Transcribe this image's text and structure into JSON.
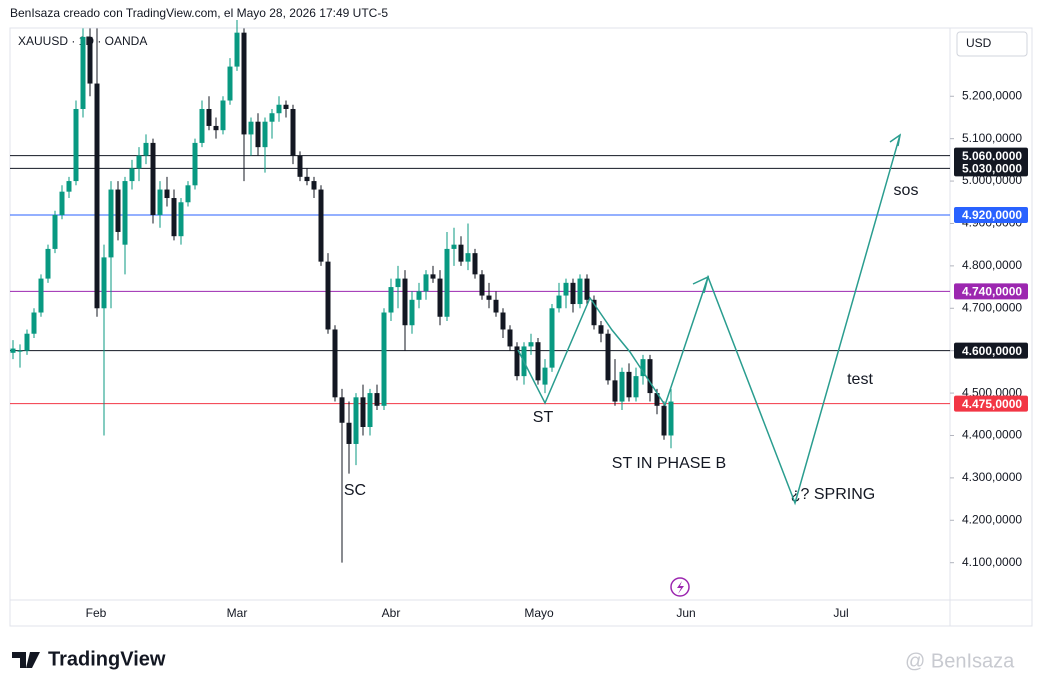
{
  "header": {
    "credit": "BenIsaza creado con TradingView.com, el Mayo 28, 2026 17:49 UTC-5",
    "symbol": "XAUUSD · 1D · OANDA",
    "currency": "USD"
  },
  "chart_data": {
    "type": "candlestick",
    "up_color": "#089981",
    "down_color": "#131722",
    "ylim": [
      4012,
      5361
    ],
    "yticks": [
      {
        "value": 5200,
        "label": "5.200,0000"
      },
      {
        "value": 5100,
        "label": "5.100,0000"
      },
      {
        "value": 5000,
        "label": "5.000,0000"
      },
      {
        "value": 4900,
        "label": "4.900,0000"
      },
      {
        "value": 4800,
        "label": "4.800,0000"
      },
      {
        "value": 4700,
        "label": "4.700,0000"
      },
      {
        "value": 4600,
        "label": "4.600,0000"
      },
      {
        "value": 4500,
        "label": "4.500,0000"
      },
      {
        "value": 4400,
        "label": "4.400,0000"
      },
      {
        "value": 4300,
        "label": "4.300,0000"
      },
      {
        "value": 4200,
        "label": "4.200,0000"
      },
      {
        "value": 4100,
        "label": "4.100,0000"
      }
    ],
    "x_labels": [
      "Feb",
      "Mar",
      "Abr",
      "Mayo",
      "Jun",
      "Jul"
    ],
    "levels": [
      {
        "value": 5060,
        "label": "5.060,0000",
        "color": "#131722"
      },
      {
        "value": 5030,
        "label": "5.030,0000",
        "color": "#131722"
      },
      {
        "value": 4920,
        "label": "4.920,0000",
        "color": "#2962ff"
      },
      {
        "value": 4740,
        "label": "4.740,0000",
        "color": "#9c27b0"
      },
      {
        "value": 4600,
        "label": "4.600,0000",
        "color": "#131722"
      },
      {
        "value": 4475,
        "label": "4.475,0000",
        "color": "#f23645"
      }
    ],
    "annotations": [
      "SC",
      "ST",
      "ST IN PHASE B",
      "¿? SPRING",
      "test",
      "sos"
    ],
    "candles": [
      [
        4595,
        4625,
        4580,
        4605
      ],
      [
        4600,
        4615,
        4560,
        4600
      ],
      [
        4600,
        4650,
        4590,
        4640
      ],
      [
        4640,
        4700,
        4630,
        4690
      ],
      [
        4690,
        4780,
        4680,
        4770
      ],
      [
        4770,
        4850,
        4760,
        4840
      ],
      [
        4840,
        4930,
        4830,
        4920
      ],
      [
        4920,
        4990,
        4910,
        4975
      ],
      [
        4975,
        5010,
        4960,
        5000
      ],
      [
        5000,
        5190,
        4990,
        5170
      ],
      [
        5170,
        5360,
        5150,
        5340
      ],
      [
        5340,
        5360,
        5200,
        5230
      ],
      [
        5230,
        5360,
        4680,
        4700
      ],
      [
        4700,
        4850,
        4400,
        4820
      ],
      [
        4820,
        5000,
        4700,
        4980
      ],
      [
        4980,
        5000,
        4860,
        4880
      ],
      [
        4850,
        5010,
        4780,
        5000
      ],
      [
        5000,
        5050,
        4980,
        5030
      ],
      [
        5030,
        5080,
        5000,
        5060
      ],
      [
        5060,
        5110,
        5040,
        5090
      ],
      [
        5090,
        5100,
        4900,
        4920
      ],
      [
        4920,
        5000,
        4890,
        4980
      ],
      [
        4980,
        5010,
        4940,
        4960
      ],
      [
        4960,
        4980,
        4860,
        4870
      ],
      [
        4870,
        4960,
        4850,
        4950
      ],
      [
        4950,
        5000,
        4940,
        4990
      ],
      [
        4990,
        5100,
        4980,
        5090
      ],
      [
        5090,
        5190,
        5080,
        5170
      ],
      [
        5170,
        5200,
        5120,
        5130
      ],
      [
        5130,
        5150,
        5100,
        5120
      ],
      [
        5120,
        5200,
        5110,
        5190
      ],
      [
        5190,
        5290,
        5180,
        5270
      ],
      [
        5270,
        5380,
        5260,
        5350
      ],
      [
        5350,
        5360,
        5000,
        5110
      ],
      [
        5110,
        5150,
        5060,
        5140
      ],
      [
        5140,
        5160,
        5060,
        5080
      ],
      [
        5080,
        5150,
        5020,
        5140
      ],
      [
        5140,
        5170,
        5100,
        5160
      ],
      [
        5160,
        5200,
        5140,
        5180
      ],
      [
        5180,
        5190,
        5150,
        5170
      ],
      [
        5170,
        5180,
        5040,
        5060
      ],
      [
        5060,
        5070,
        5000,
        5010
      ],
      [
        5010,
        5030,
        4990,
        5000
      ],
      [
        5000,
        5010,
        4960,
        4980
      ],
      [
        4980,
        4990,
        4800,
        4810
      ],
      [
        4810,
        4830,
        4640,
        4650
      ],
      [
        4650,
        4660,
        4480,
        4490
      ],
      [
        4490,
        4510,
        4100,
        4430
      ],
      [
        4430,
        4480,
        4310,
        4380
      ],
      [
        4380,
        4500,
        4330,
        4490
      ],
      [
        4490,
        4520,
        4400,
        4420
      ],
      [
        4420,
        4510,
        4400,
        4500
      ],
      [
        4500,
        4520,
        4460,
        4470
      ],
      [
        4470,
        4700,
        4460,
        4690
      ],
      [
        4690,
        4770,
        4670,
        4750
      ],
      [
        4750,
        4800,
        4700,
        4770
      ],
      [
        4770,
        4790,
        4600,
        4660
      ],
      [
        4660,
        4740,
        4640,
        4720
      ],
      [
        4720,
        4760,
        4700,
        4740
      ],
      [
        4740,
        4790,
        4720,
        4780
      ],
      [
        4780,
        4800,
        4760,
        4770
      ],
      [
        4770,
        4790,
        4660,
        4680
      ],
      [
        4680,
        4880,
        4670,
        4840
      ],
      [
        4840,
        4890,
        4800,
        4850
      ],
      [
        4850,
        4870,
        4800,
        4810
      ],
      [
        4810,
        4900,
        4790,
        4830
      ],
      [
        4830,
        4840,
        4770,
        4780
      ],
      [
        4780,
        4790,
        4720,
        4730
      ],
      [
        4730,
        4760,
        4700,
        4720
      ],
      [
        4720,
        4740,
        4680,
        4690
      ],
      [
        4690,
        4700,
        4630,
        4650
      ],
      [
        4650,
        4660,
        4600,
        4610
      ],
      [
        4610,
        4620,
        4530,
        4540
      ],
      [
        4540,
        4620,
        4520,
        4610
      ],
      [
        4610,
        4640,
        4590,
        4620
      ],
      [
        4620,
        4630,
        4520,
        4530
      ],
      [
        4520,
        4580,
        4500,
        4560
      ],
      [
        4560,
        4710,
        4550,
        4700
      ],
      [
        4700,
        4760,
        4690,
        4730
      ],
      [
        4730,
        4770,
        4700,
        4760
      ],
      [
        4760,
        4770,
        4690,
        4710
      ],
      [
        4710,
        4780,
        4700,
        4770
      ],
      [
        4770,
        4780,
        4710,
        4720
      ],
      [
        4720,
        4730,
        4650,
        4660
      ],
      [
        4660,
        4670,
        4620,
        4640
      ],
      [
        4640,
        4650,
        4520,
        4530
      ],
      [
        4530,
        4580,
        4470,
        4480
      ],
      [
        4480,
        4560,
        4460,
        4550
      ],
      [
        4550,
        4570,
        4480,
        4490
      ],
      [
        4490,
        4560,
        4480,
        4540
      ],
      [
        4540,
        4590,
        4520,
        4580
      ],
      [
        4580,
        4590,
        4480,
        4500
      ],
      [
        4500,
        4510,
        4450,
        4470
      ],
      [
        4470,
        4480,
        4390,
        4400
      ],
      [
        4400,
        4510,
        4370,
        4480
      ]
    ]
  },
  "footer": {
    "brand": "TradingView",
    "watermark": "@ BenIsaza"
  }
}
